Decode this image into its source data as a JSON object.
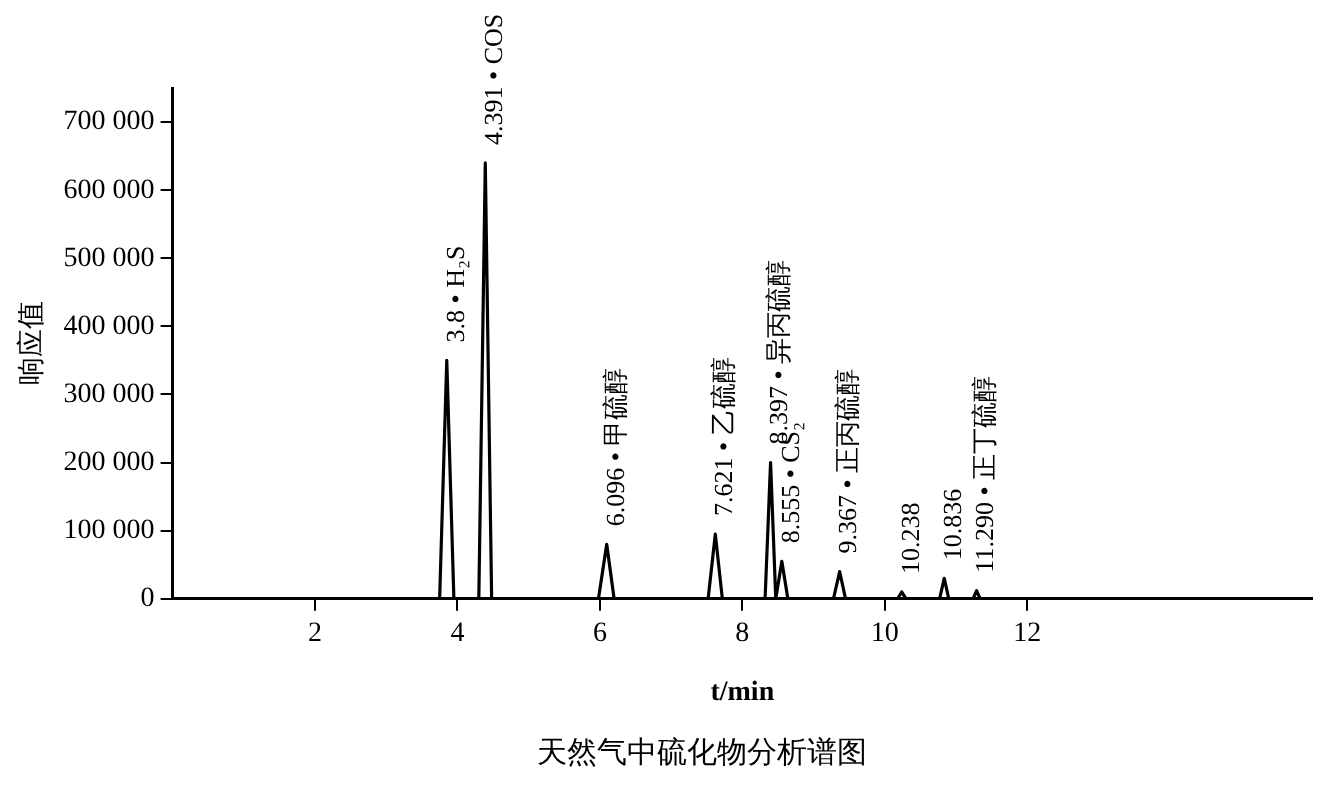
{
  "chart_data": {
    "type": "line",
    "xlabel": "t/min",
    "ylabel": "响应值",
    "x": [
      0,
      3.75,
      3.85,
      3.95,
      4.3,
      4.391,
      4.48,
      5.98,
      6.096,
      6.2,
      7.52,
      7.621,
      7.72,
      8.32,
      8.397,
      8.47,
      8.555,
      8.64,
      9.28,
      9.367,
      9.45,
      10.18,
      10.238,
      10.3,
      10.77,
      10.836,
      10.9,
      11.24,
      11.29,
      11.34,
      16
    ],
    "series": [
      {
        "color": "#000000",
        "values": [
          0,
          0,
          350000,
          0,
          0,
          640000,
          0,
          0,
          80000,
          0,
          0,
          95000,
          0,
          0,
          200000,
          0,
          55000,
          0,
          0,
          40000,
          0,
          0,
          10000,
          0,
          0,
          30000,
          0,
          0,
          12000,
          0,
          0
        ]
      }
    ],
    "xlim": [
      0,
      16
    ],
    "xticks": [
      2,
      4,
      6,
      8,
      10,
      12
    ],
    "ylim": [
      0,
      750000
    ],
    "yticks": [
      0,
      {
        "value": 100000,
        "label": "100 000"
      },
      {
        "value": 200000,
        "label": "200 000"
      },
      {
        "value": 300000,
        "label": "300 000"
      },
      {
        "value": 400000,
        "label": "400 000"
      },
      {
        "value": 500000,
        "label": "500 000"
      },
      {
        "value": 600000,
        "label": "600 000"
      },
      {
        "value": 700000,
        "label": "700 000"
      }
    ],
    "grid": false,
    "legend": false,
    "marker": "none",
    "line_style": "solid",
    "annotations": [
      {
        "text": "3.8 • H₂S",
        "x": 3.85,
        "y": 350000
      },
      {
        "text": "4.391 • COS",
        "x": 4.391,
        "y": 640000
      },
      {
        "text": "6.096 • 甲硫醇",
        "x": 6.096,
        "y": 80000
      },
      {
        "text": "7.621 • 乙硫醇",
        "x": 7.621,
        "y": 95000
      },
      {
        "text": "8.397 • 异丙硫醇",
        "x": 8.397,
        "y": 200000
      },
      {
        "text": "8.555 • CS₂",
        "x": 8.555,
        "y": 55000
      },
      {
        "text": "9.367 • 正丙硫醇",
        "x": 9.367,
        "y": 40000
      },
      {
        "text": "10.238",
        "x": 10.238,
        "y": 10000
      },
      {
        "text": "10.836",
        "x": 10.836,
        "y": 30000
      },
      {
        "text": "11.290 • 正丁硫醇",
        "x": 11.29,
        "y": 12000
      },
      "天然气中硫化物分析谱图"
    ]
  }
}
